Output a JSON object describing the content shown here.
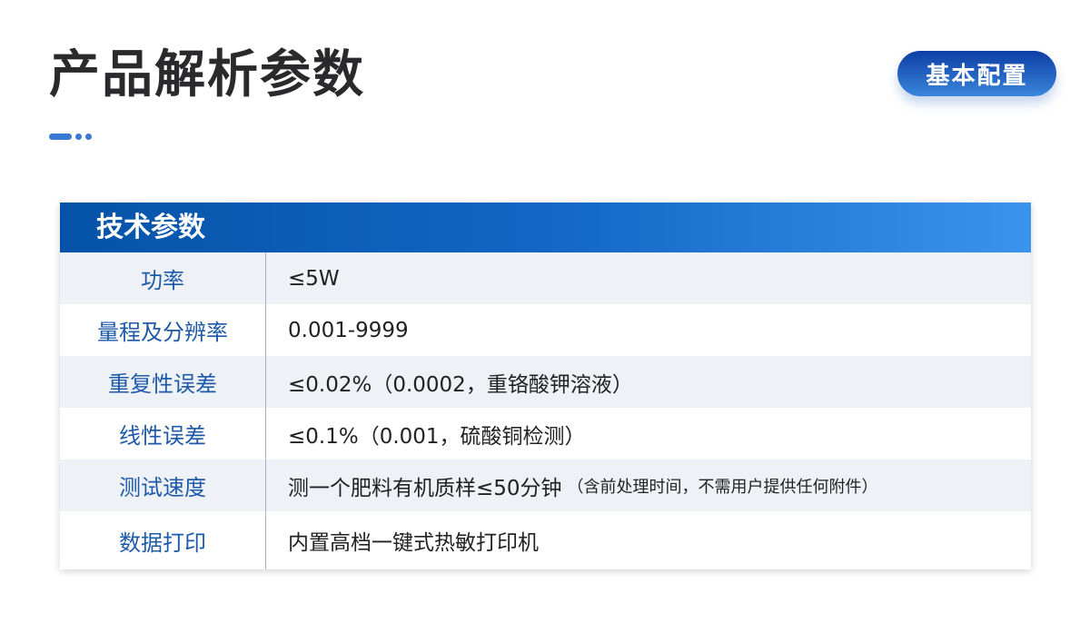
{
  "page": {
    "title": "产品解析参数",
    "badge": "基本配置"
  },
  "table": {
    "header": "技术参数",
    "rows": [
      {
        "label": "功率",
        "value": "≤5W",
        "note": ""
      },
      {
        "label": "量程及分辨率",
        "value": "0.001-9999",
        "note": ""
      },
      {
        "label": "重复性误差",
        "value": "≤0.02%（0.0002，重铬酸钾溶液）",
        "note": ""
      },
      {
        "label": "线性误差",
        "value": "≤0.1%（0.001，硫酸铜检测）",
        "note": ""
      },
      {
        "label": "测试速度",
        "value": "测一个肥料有机质样≤50分钟",
        "note": "（含前处理时间，不需用户提供任何附件）"
      },
      {
        "label": "数据打印",
        "value": "内置高档一键式热敏打印机",
        "note": ""
      }
    ]
  },
  "colors": {
    "accent": "#3a78d4",
    "label": "#1d5aa8",
    "header_start": "#0553a8",
    "header_end": "#3a94ec",
    "row_alt": "#eef1f6"
  }
}
